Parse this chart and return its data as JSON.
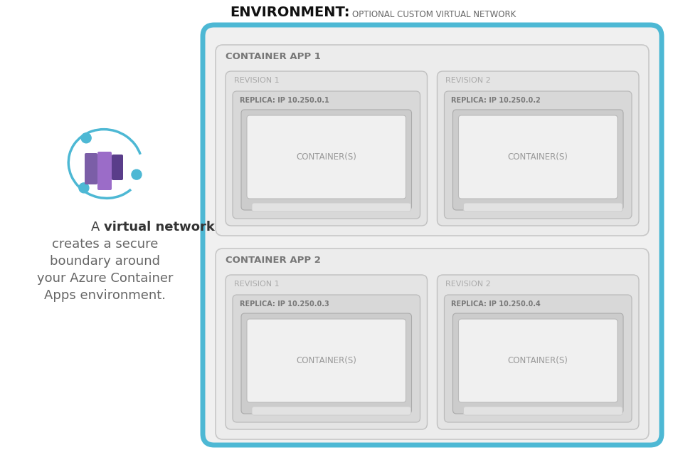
{
  "bg_color": "#ffffff",
  "env_border_color": "#4db8d4",
  "app_bg": "#ececec",
  "app_edge": "#c8c8c8",
  "rev_bg": "#e4e4e4",
  "rev_edge": "#c0c0c0",
  "replica_bg": "#d8d8d8",
  "replica_edge": "#bbbbbb",
  "cont_outer_bg": "#cccccc",
  "cont_outer_edge": "#aaaaaa",
  "cont_inner_bg": "#f0f0f0",
  "cont_inner_edge": "#bbbbbb",
  "cont_shadow_bg": "#e2e2e2",
  "cont_shadow_edge": "#cccccc",
  "env_outer_bg": "#f0f0f0",
  "env_title": "ENVIRONMENT:",
  "env_subtitle": "OPTIONAL CUSTOM VIRTUAL NETWORK",
  "app1_label": "CONTAINER APP 1",
  "app2_label": "CONTAINER APP 2",
  "rev1_label": "REVISION 1",
  "rev2_label": "REVISION 2",
  "replica1_1": "REPLICA: IP 10.250.0.1",
  "replica1_2": "REPLICA: IP 10.250.0.2",
  "replica2_1": "REPLICA: IP 10.250.0.3",
  "replica2_2": "REPLICA: IP 10.250.0.4",
  "container_label": "CONTAINER(S)",
  "side_line1a": "A ",
  "side_line1b": "virtual network",
  "side_line2": "creates a secure",
  "side_line3": "boundary around",
  "side_line4": "your Azure Container",
  "side_line5": "Apps environment.",
  "icon_color1": "#7b5ea7",
  "icon_color2": "#9b6cc8",
  "icon_color3": "#5a3d8a",
  "icon_arc_color": "#4db8d4",
  "icon_dot_color": "#4db8d4"
}
